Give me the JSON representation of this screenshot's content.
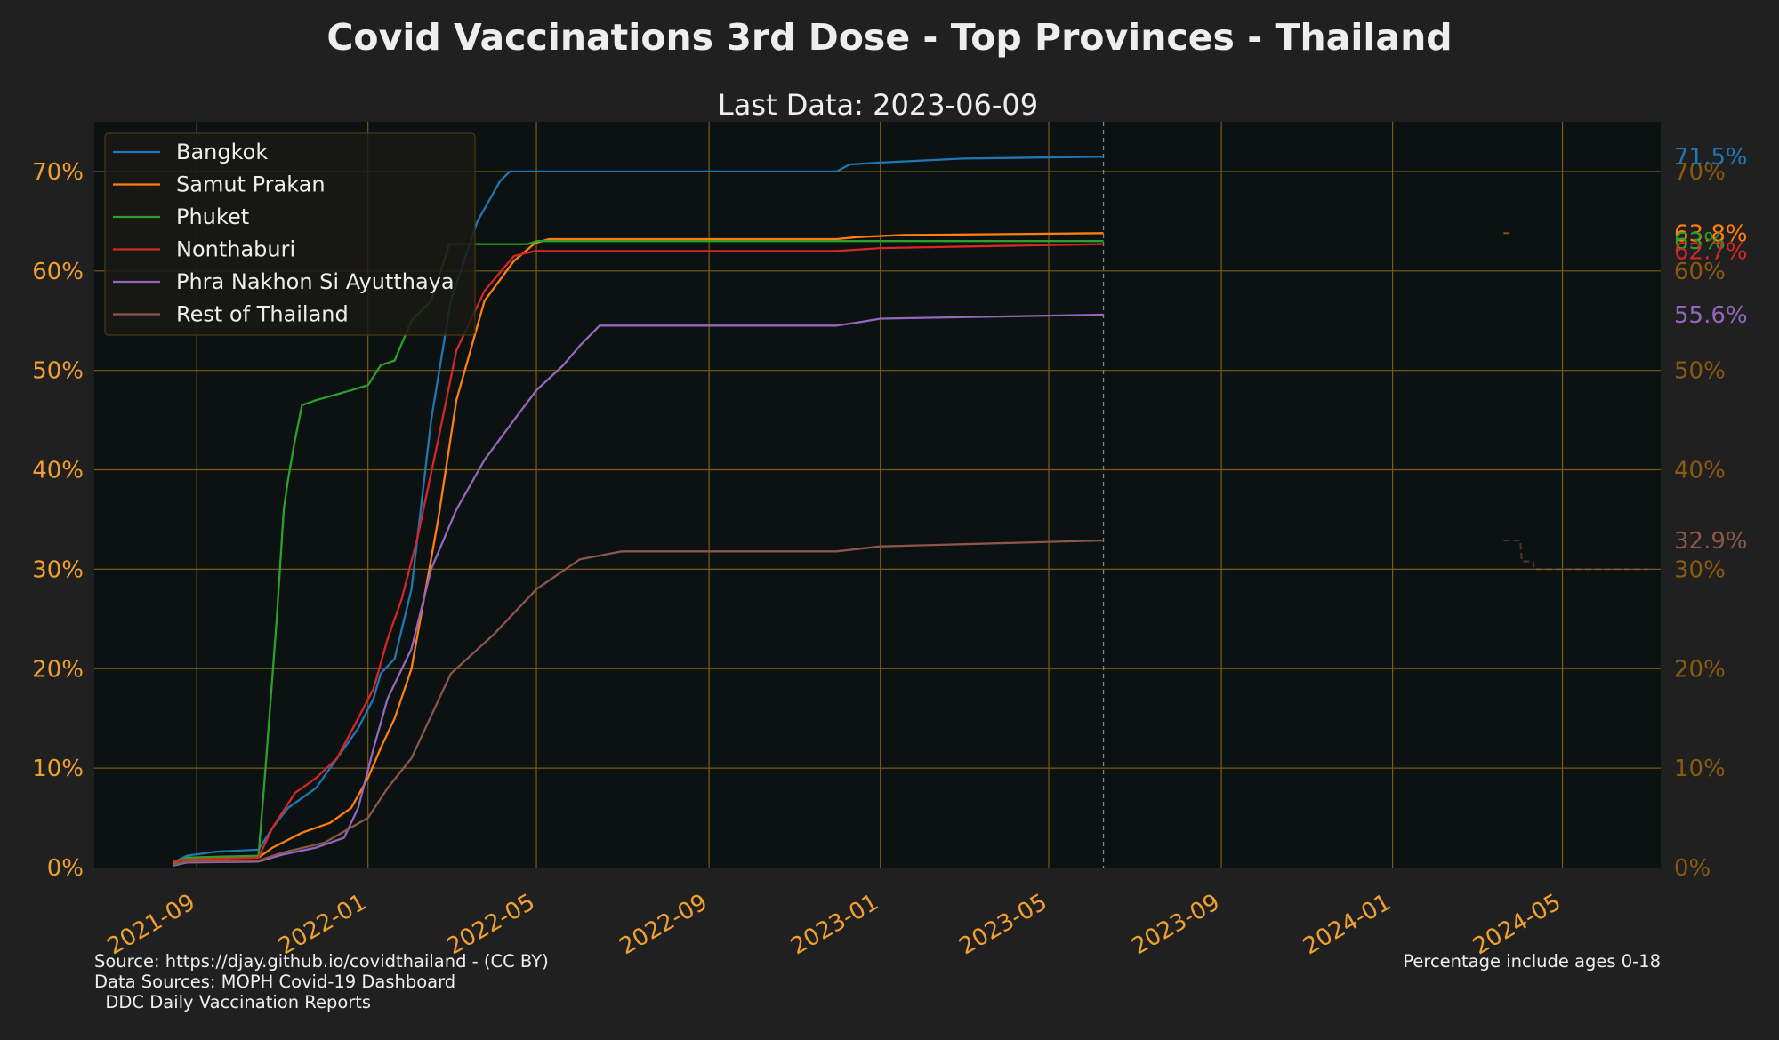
{
  "title": "Covid Vaccinations 3rd Dose - Top Provinces - Thailand",
  "subtitle": "Last Data: 2023-06-09",
  "footer": {
    "source": "Source: https://djay.github.io/covidthailand - (CC BY)",
    "data_sources": "Data Sources: MOPH Covid-19 Dashboard",
    "data_sources_2": "  DDC Daily Vaccination Reports",
    "note": "Percentage include ages 0-18"
  },
  "colors": {
    "background": "#202020",
    "plot_background": "#0c1111",
    "grid": "#7a5c14",
    "tick_left": "#f0a030",
    "tick_right": "#8a5a10",
    "text": "#eeeeee"
  },
  "chart_data": {
    "type": "line",
    "title": "Covid Vaccinations 3rd Dose - Top Provinces - Thailand",
    "subtitle": "Last Data: 2023-06-09",
    "x_ticks": [
      "2021-09",
      "2022-01",
      "2022-05",
      "2022-09",
      "2023-01",
      "2023-05",
      "2023-09",
      "2024-01",
      "2024-05"
    ],
    "y_ticks_left": [
      "0%",
      "10%",
      "20%",
      "30%",
      "40%",
      "50%",
      "60%",
      "70%"
    ],
    "y_ticks_right": [
      "0%",
      "10%",
      "20%",
      "30%",
      "40%",
      "50%",
      "60%",
      "70%"
    ],
    "xlim": [
      "2021-06-20",
      "2024-07-10"
    ],
    "ylim": [
      0,
      75
    ],
    "grid": true,
    "legend_position": "top-left",
    "last_data_marker": "2023-06-09",
    "series": [
      {
        "name": "Bangkok",
        "color": "#1f77b4",
        "end_label": "71.5%",
        "points": [
          [
            "2021-08-15",
            0.5
          ],
          [
            "2021-08-25",
            1.2
          ],
          [
            "2021-09-15",
            1.6
          ],
          [
            "2021-10-15",
            1.8
          ],
          [
            "2021-10-25",
            4
          ],
          [
            "2021-11-05",
            6
          ],
          [
            "2021-11-25",
            8
          ],
          [
            "2021-12-10",
            11
          ],
          [
            "2021-12-25",
            14
          ],
          [
            "2022-01-05",
            17
          ],
          [
            "2022-01-10",
            19.5
          ],
          [
            "2022-01-20",
            21
          ],
          [
            "2022-02-01",
            28
          ],
          [
            "2022-02-15",
            45
          ],
          [
            "2022-03-01",
            57
          ],
          [
            "2022-03-20",
            65
          ],
          [
            "2022-04-05",
            69
          ],
          [
            "2022-04-12",
            70
          ],
          [
            "2022-06-01",
            70
          ],
          [
            "2022-12-01",
            70
          ],
          [
            "2022-12-10",
            70.7
          ],
          [
            "2023-01-01",
            70.9
          ],
          [
            "2023-03-01",
            71.3
          ],
          [
            "2023-06-09",
            71.5
          ]
        ]
      },
      {
        "name": "Samut Prakan",
        "color": "#ff7f0e",
        "end_label": "63.8%",
        "points": [
          [
            "2021-08-15",
            0.5
          ],
          [
            "2021-08-25",
            0.9
          ],
          [
            "2021-10-15",
            1.0
          ],
          [
            "2021-10-25",
            2
          ],
          [
            "2021-11-15",
            3.5
          ],
          [
            "2021-12-05",
            4.5
          ],
          [
            "2021-12-20",
            6
          ],
          [
            "2022-01-01",
            9
          ],
          [
            "2022-01-10",
            12
          ],
          [
            "2022-01-20",
            15
          ],
          [
            "2022-02-01",
            20
          ],
          [
            "2022-02-20",
            35
          ],
          [
            "2022-03-05",
            47
          ],
          [
            "2022-03-25",
            57
          ],
          [
            "2022-04-15",
            61
          ],
          [
            "2022-04-30",
            62.8
          ],
          [
            "2022-05-10",
            63.2
          ],
          [
            "2022-12-01",
            63.2
          ],
          [
            "2022-12-15",
            63.4
          ],
          [
            "2023-01-15",
            63.6
          ],
          [
            "2023-06-09",
            63.8
          ]
        ]
      },
      {
        "name": "Phuket",
        "color": "#2ca02c",
        "end_label": "63%",
        "points": [
          [
            "2021-08-15",
            0.4
          ],
          [
            "2021-08-25",
            1.0
          ],
          [
            "2021-10-15",
            1.2
          ],
          [
            "2021-10-20",
            10
          ],
          [
            "2021-10-28",
            25
          ],
          [
            "2021-11-02",
            36
          ],
          [
            "2021-11-05",
            39
          ],
          [
            "2021-11-10",
            43
          ],
          [
            "2021-11-15",
            46.5
          ],
          [
            "2021-11-25",
            47
          ],
          [
            "2021-12-15",
            47.8
          ],
          [
            "2022-01-01",
            48.5
          ],
          [
            "2022-01-10",
            50.5
          ],
          [
            "2022-01-20",
            51
          ],
          [
            "2022-02-01",
            55
          ],
          [
            "2022-02-15",
            57
          ],
          [
            "2022-02-28",
            62.7
          ],
          [
            "2022-04-25",
            62.7
          ],
          [
            "2022-05-01",
            63
          ],
          [
            "2022-12-01",
            63
          ],
          [
            "2023-06-09",
            63
          ]
        ]
      },
      {
        "name": "Nonthaburi",
        "color": "#d62728",
        "end_label": "62.7%",
        "points": [
          [
            "2021-08-15",
            0.6
          ],
          [
            "2021-08-25",
            0.8
          ],
          [
            "2021-10-15",
            1.0
          ],
          [
            "2021-10-25",
            4
          ],
          [
            "2021-11-10",
            7.5
          ],
          [
            "2021-11-25",
            9
          ],
          [
            "2021-12-10",
            11
          ],
          [
            "2021-12-25",
            15
          ],
          [
            "2022-01-05",
            18
          ],
          [
            "2022-01-15",
            23
          ],
          [
            "2022-01-25",
            27
          ],
          [
            "2022-02-05",
            33
          ],
          [
            "2022-02-20",
            43
          ],
          [
            "2022-03-05",
            52
          ],
          [
            "2022-03-25",
            58
          ],
          [
            "2022-04-15",
            61.5
          ],
          [
            "2022-04-30",
            62
          ],
          [
            "2022-12-01",
            62
          ],
          [
            "2023-01-01",
            62.3
          ],
          [
            "2023-06-09",
            62.7
          ]
        ]
      },
      {
        "name": "Phra Nakhon Si Ayutthaya",
        "color": "#9467bd",
        "end_label": "55.6%",
        "points": [
          [
            "2021-08-15",
            0.2
          ],
          [
            "2021-08-25",
            0.5
          ],
          [
            "2021-10-15",
            0.6
          ],
          [
            "2021-11-01",
            1.3
          ],
          [
            "2021-11-25",
            2
          ],
          [
            "2021-12-15",
            3
          ],
          [
            "2021-12-25",
            6
          ],
          [
            "2022-01-05",
            12
          ],
          [
            "2022-01-15",
            17
          ],
          [
            "2022-02-01",
            22
          ],
          [
            "2022-02-15",
            30
          ],
          [
            "2022-03-05",
            36
          ],
          [
            "2022-03-25",
            41
          ],
          [
            "2022-04-15",
            45
          ],
          [
            "2022-05-01",
            48
          ],
          [
            "2022-05-20",
            50.5
          ],
          [
            "2022-06-01",
            52.5
          ],
          [
            "2022-06-15",
            54.5
          ],
          [
            "2022-12-01",
            54.5
          ],
          [
            "2022-12-15",
            54.8
          ],
          [
            "2023-01-01",
            55.2
          ],
          [
            "2023-06-09",
            55.6
          ]
        ]
      },
      {
        "name": "Rest of Thailand",
        "color": "#8c564b",
        "end_label": "32.9%",
        "points": [
          [
            "2021-08-15",
            0.3
          ],
          [
            "2021-08-25",
            0.6
          ],
          [
            "2021-10-15",
            0.7
          ],
          [
            "2021-11-01",
            1.5
          ],
          [
            "2021-12-01",
            2.5
          ],
          [
            "2022-01-01",
            5
          ],
          [
            "2022-01-15",
            8
          ],
          [
            "2022-02-01",
            11
          ],
          [
            "2022-03-01",
            19.5
          ],
          [
            "2022-04-01",
            23.5
          ],
          [
            "2022-05-01",
            28
          ],
          [
            "2022-06-01",
            31
          ],
          [
            "2022-07-01",
            31.8
          ],
          [
            "2022-12-01",
            31.8
          ],
          [
            "2023-01-01",
            32.3
          ],
          [
            "2023-06-09",
            32.9
          ]
        ]
      }
    ],
    "extra_marks": [
      {
        "color": "#ff7f0e",
        "style": "dashed",
        "points": [
          [
            "2024-03-20",
            63.8
          ],
          [
            "2024-03-25",
            63.8
          ]
        ]
      },
      {
        "color": "#8c564b",
        "style": "dashed",
        "points": [
          [
            "2024-03-20",
            32.9
          ],
          [
            "2024-04-01",
            32.9
          ],
          [
            "2024-04-02",
            30.8
          ],
          [
            "2024-04-10",
            30.8
          ],
          [
            "2024-04-11",
            30.0
          ],
          [
            "2024-07-01",
            30.0
          ]
        ]
      }
    ]
  }
}
